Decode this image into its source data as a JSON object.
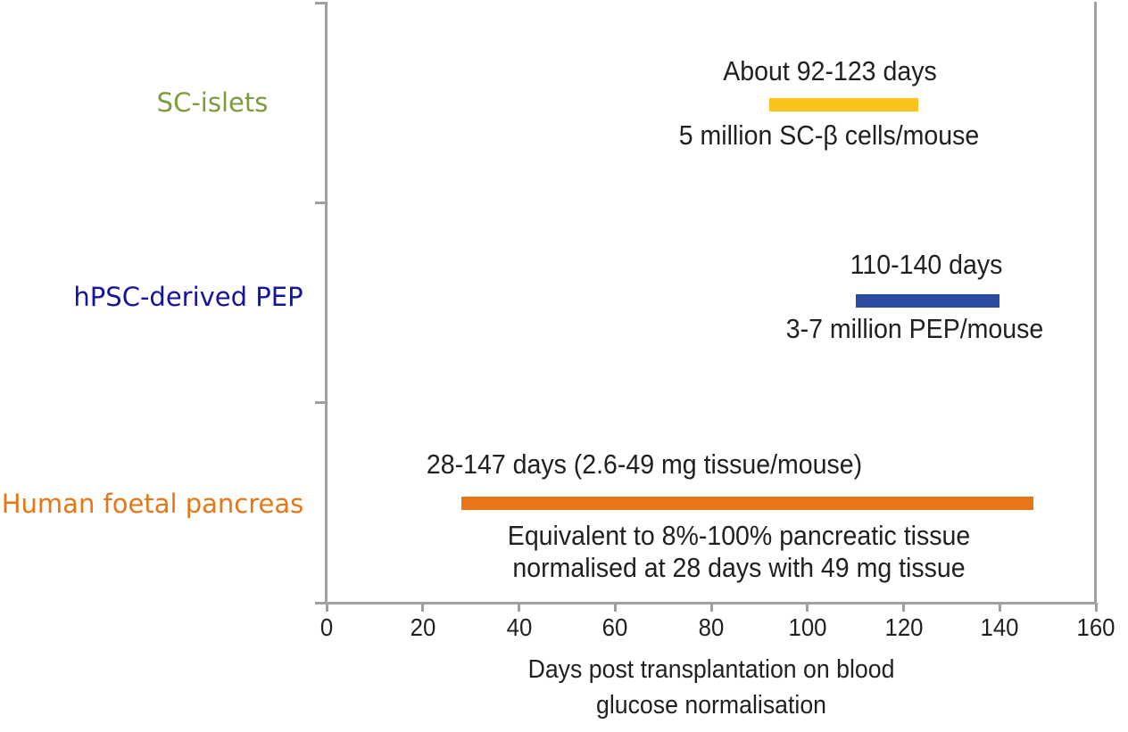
{
  "figure": {
    "background": "#ffffff",
    "axis_color": "#a0a0a0",
    "text_color": "#231f20"
  },
  "chart_data": {
    "type": "bar",
    "subtype": "horizontal-range-bars",
    "title": "",
    "xlabel": "Days post transplantation on blood glucose normalisation",
    "xlabel_lines": [
      "Days post transplantation on blood",
      "glucose normalisation"
    ],
    "xlim": [
      0,
      160
    ],
    "xticks": [
      0,
      20,
      40,
      60,
      80,
      100,
      120,
      140,
      160
    ],
    "grid": "off",
    "legend": "none",
    "categories": [
      "SC-islets",
      "hPSC-derived PEP",
      "Human foetal pancreas"
    ],
    "series": [
      {
        "category": "SC-islets",
        "category_color": "#7c9c3e",
        "bar_color": "#f9c31c",
        "range_days": [
          92,
          123
        ],
        "label_above": "About 92-123 days",
        "label_below_lines": [
          "5 million SC-β cells/mouse"
        ]
      },
      {
        "category": "hPSC-derived PEP",
        "category_color": "#14149c",
        "bar_color": "#2a4da3",
        "range_days": [
          110,
          140
        ],
        "label_above": "110-140 days",
        "label_below_lines": [
          "3-7 million PEP/mouse"
        ]
      },
      {
        "category": "Human foetal pancreas",
        "category_color": "#e87614",
        "bar_color": "#e87618",
        "range_days": [
          28,
          147
        ],
        "label_above": "28-147 days (2.6-49 mg tissue/mouse)",
        "label_below_lines": [
          "Equivalent to 8%-100% pancreatic tissue",
          "normalised at 28 days with 49 mg tissue"
        ]
      }
    ]
  }
}
